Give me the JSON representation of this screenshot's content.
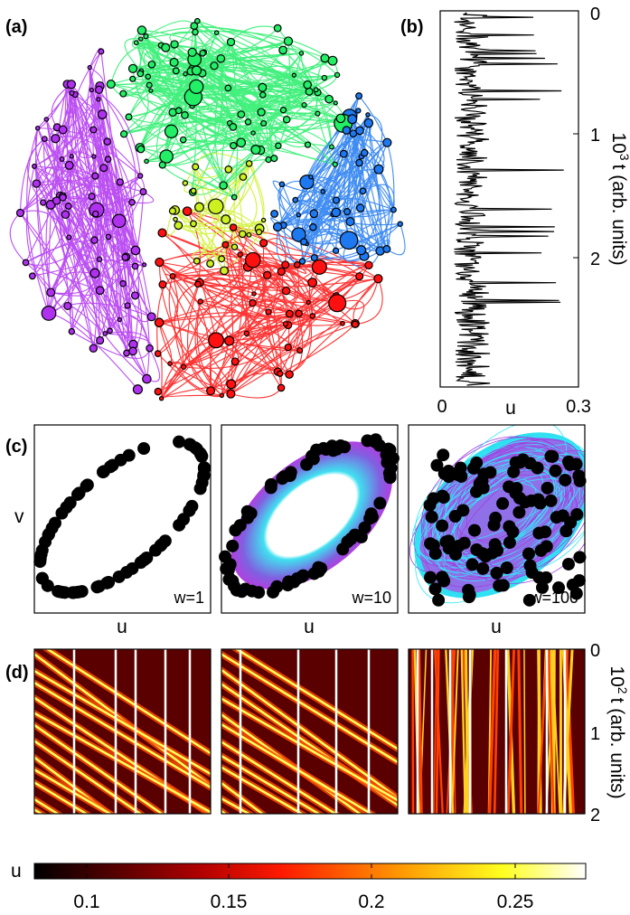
{
  "panel_a": {
    "label": "(a)"
  },
  "panel_b": {
    "label": "(b)",
    "y_ticks": [
      "0",
      "1",
      "2"
    ],
    "y_label": {
      "base": "10",
      "exp": "3",
      "text": "t (arb. units)"
    },
    "x_ticks": [
      "0",
      "0.3"
    ],
    "x_label": "u"
  },
  "panel_c": {
    "label": "(c)",
    "y_label": "v",
    "plots": [
      {
        "x_label": "u",
        "annotation": "w=1"
      },
      {
        "x_label": "u",
        "annotation": "w=10"
      },
      {
        "x_label": "u",
        "annotation": "w=100"
      }
    ]
  },
  "panel_d": {
    "label": "(d)",
    "y_ticks": [
      "0",
      "1",
      "2"
    ],
    "y_label": {
      "base": "10",
      "exp": "2",
      "text": "t (arb. units)"
    }
  },
  "colorbar": {
    "label": "u",
    "ticks": [
      "0.1",
      "0.15",
      "0.2",
      "0.25"
    ]
  }
}
